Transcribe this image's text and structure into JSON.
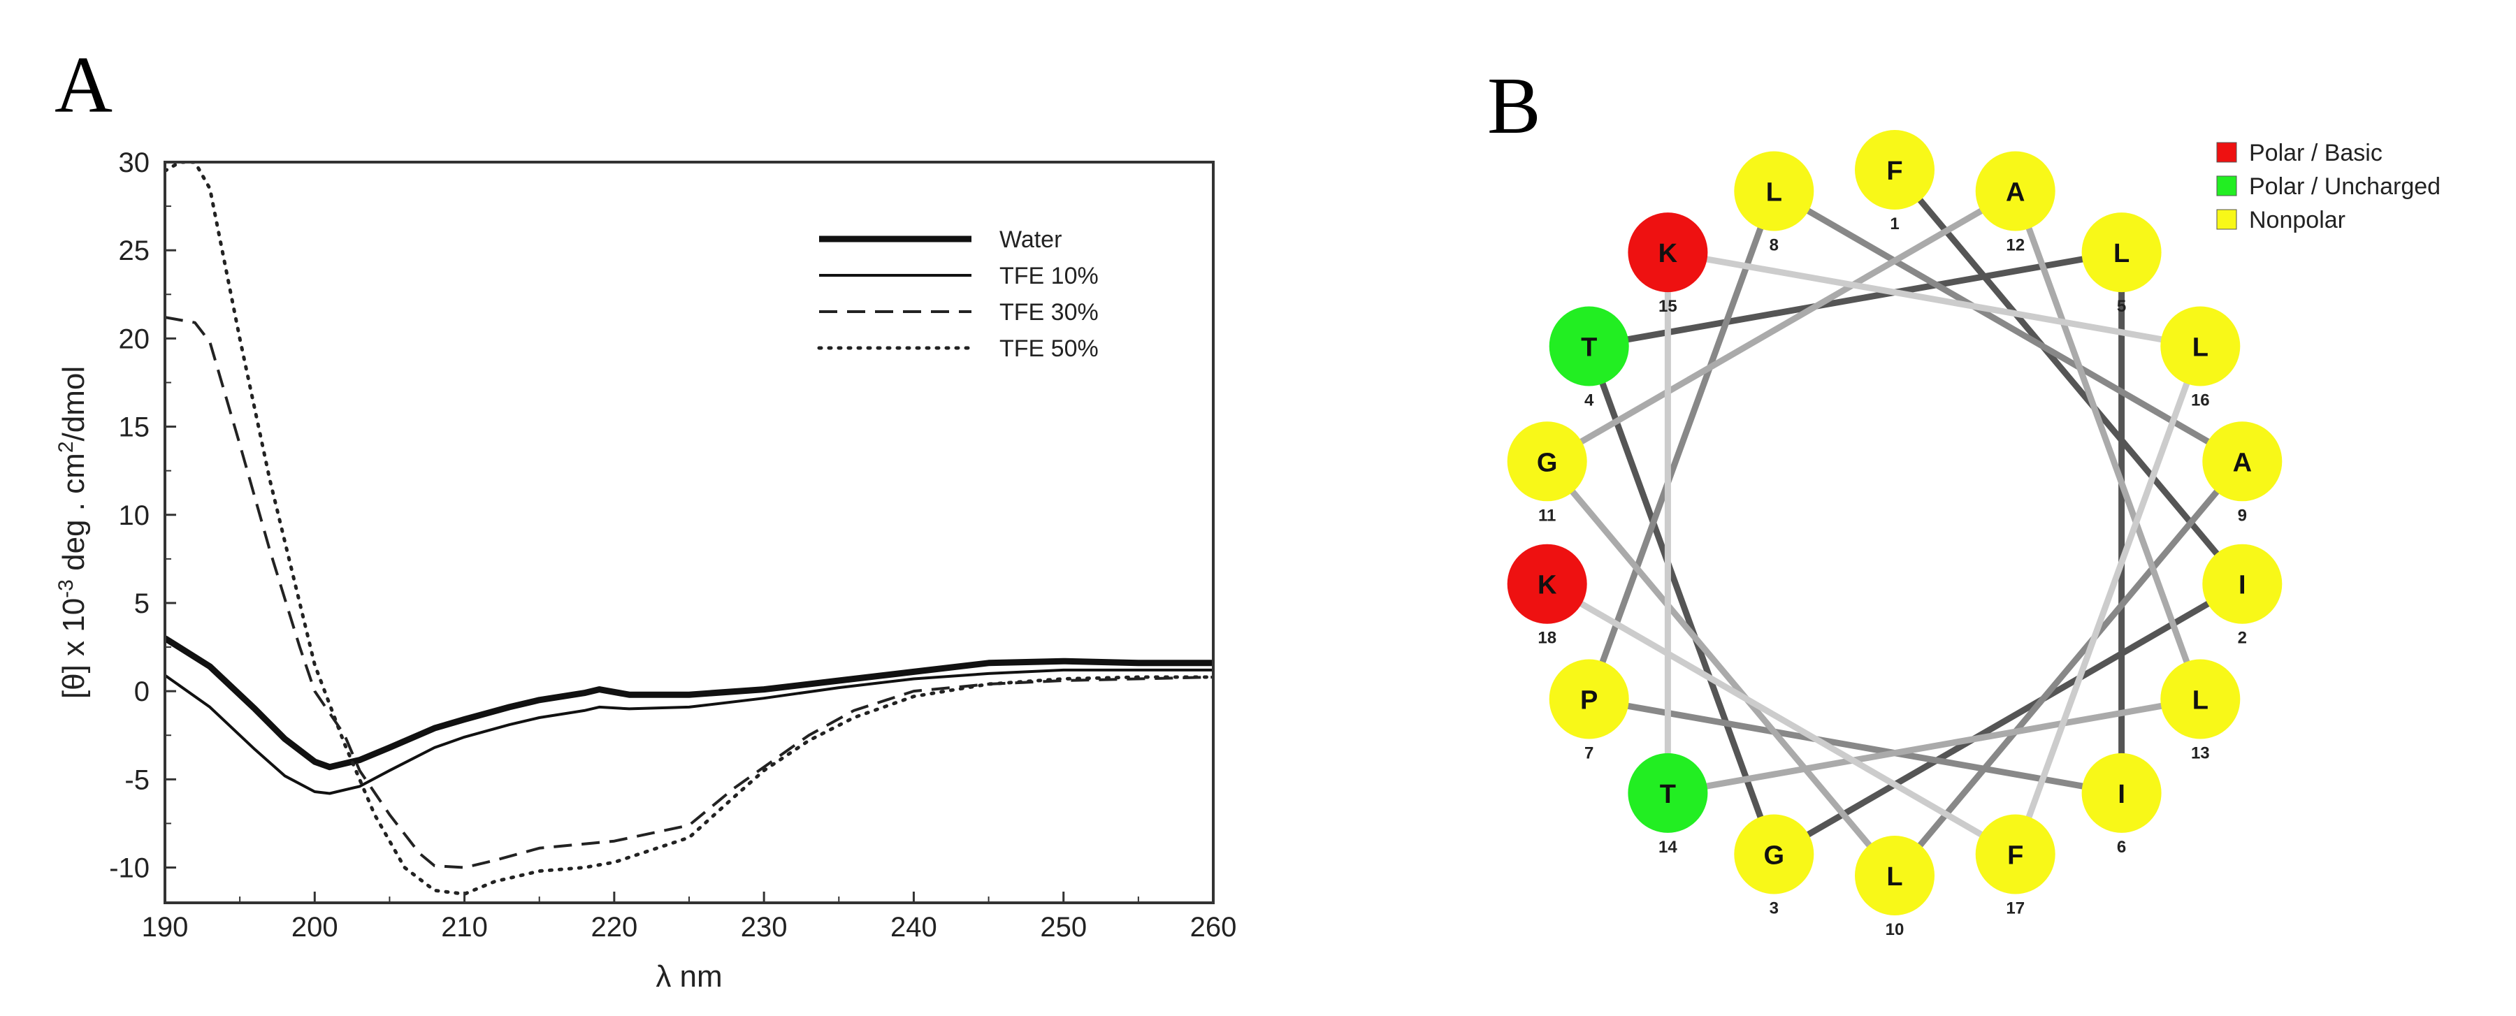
{
  "chart_data": [
    {
      "panel_label": "A",
      "type": "line",
      "title": "",
      "xlabel": "λ nm",
      "ylabel_parts": [
        "[θ] x 10",
        "-3",
        " deg . cm",
        "2",
        "/dmol"
      ],
      "xlim": [
        190,
        260
      ],
      "ylim": [
        -12,
        30
      ],
      "x_ticks": [
        190,
        200,
        210,
        220,
        230,
        240,
        250,
        260
      ],
      "y_ticks": [
        -10,
        -5,
        0,
        5,
        10,
        15,
        20,
        25,
        30
      ],
      "legend_position": "top-right",
      "series": [
        {
          "name": "Water",
          "style": "thick-solid",
          "points": [
            [
              190,
              3
            ],
            [
              193,
              1.4
            ],
            [
              196,
              -1
            ],
            [
              198,
              -2.7
            ],
            [
              200,
              -4
            ],
            [
              201,
              -4.3
            ],
            [
              203,
              -3.9
            ],
            [
              205,
              -3.2
            ],
            [
              208,
              -2.1
            ],
            [
              210,
              -1.6
            ],
            [
              213,
              -0.9
            ],
            [
              215,
              -0.5
            ],
            [
              218,
              -0.1
            ],
            [
              219,
              0.1
            ],
            [
              221,
              -0.2
            ],
            [
              225,
              -0.2
            ],
            [
              230,
              0.1
            ],
            [
              235,
              0.6
            ],
            [
              240,
              1.1
            ],
            [
              245,
              1.6
            ],
            [
              250,
              1.7
            ],
            [
              255,
              1.6
            ],
            [
              260,
              1.6
            ]
          ]
        },
        {
          "name": "TFE 10%",
          "style": "thin-solid",
          "points": [
            [
              190,
              0.9
            ],
            [
              193,
              -0.9
            ],
            [
              196,
              -3.3
            ],
            [
              198,
              -4.8
            ],
            [
              200,
              -5.7
            ],
            [
              201,
              -5.8
            ],
            [
              203,
              -5.4
            ],
            [
              205,
              -4.5
            ],
            [
              208,
              -3.2
            ],
            [
              210,
              -2.6
            ],
            [
              213,
              -1.9
            ],
            [
              215,
              -1.5
            ],
            [
              218,
              -1.1
            ],
            [
              219,
              -0.9
            ],
            [
              221,
              -1.0
            ],
            [
              225,
              -0.9
            ],
            [
              230,
              -0.4
            ],
            [
              235,
              0.2
            ],
            [
              240,
              0.7
            ],
            [
              245,
              1.0
            ],
            [
              250,
              1.2
            ],
            [
              255,
              1.2
            ],
            [
              260,
              1.2
            ]
          ]
        },
        {
          "name": "TFE 30%",
          "style": "dashed",
          "points": [
            [
              190,
              21.2
            ],
            [
              192,
              20.9
            ],
            [
              193,
              19.8
            ],
            [
              195,
              14
            ],
            [
              197,
              8
            ],
            [
              199,
              2.5
            ],
            [
              200,
              0
            ],
            [
              202,
              -2.5
            ],
            [
              203,
              -4.5
            ],
            [
              205,
              -7
            ],
            [
              207,
              -9.2
            ],
            [
              208,
              -9.9
            ],
            [
              210,
              -10
            ],
            [
              212,
              -9.6
            ],
            [
              215,
              -8.9
            ],
            [
              220,
              -8.5
            ],
            [
              225,
              -7.6
            ],
            [
              228,
              -5.5
            ],
            [
              230,
              -4.3
            ],
            [
              233,
              -2.5
            ],
            [
              236,
              -1.1
            ],
            [
              240,
              0
            ],
            [
              245,
              0.4
            ],
            [
              250,
              0.6
            ],
            [
              255,
              0.7
            ],
            [
              260,
              0.8
            ]
          ]
        },
        {
          "name": "TFE 50%",
          "style": "dotted",
          "points": [
            [
              190,
              29.5
            ],
            [
              191,
              30
            ],
            [
              192,
              30
            ],
            [
              193,
              28.5
            ],
            [
              195,
              20
            ],
            [
              197,
              12
            ],
            [
              199,
              5
            ],
            [
              200,
              1.5
            ],
            [
              202,
              -3
            ],
            [
              204,
              -7
            ],
            [
              206,
              -10
            ],
            [
              208,
              -11.3
            ],
            [
              210,
              -11.5
            ],
            [
              212,
              -10.8
            ],
            [
              215,
              -10.2
            ],
            [
              218,
              -10
            ],
            [
              220,
              -9.7
            ],
            [
              225,
              -8.3
            ],
            [
              228,
              -6
            ],
            [
              230,
              -4.5
            ],
            [
              233,
              -2.8
            ],
            [
              236,
              -1.5
            ],
            [
              240,
              -0.3
            ],
            [
              245,
              0.4
            ],
            [
              250,
              0.7
            ],
            [
              255,
              0.8
            ],
            [
              260,
              0.8
            ]
          ]
        }
      ]
    },
    {
      "panel_label": "B",
      "type": "helical-wheel",
      "legend_position": "top-right",
      "categories": [
        {
          "name": "Polar / Basic",
          "color": "#ee1111"
        },
        {
          "name": "Polar / Uncharged",
          "color": "#22ee22"
        },
        {
          "name": "Nonpolar",
          "color": "#f8f818"
        }
      ],
      "residues": [
        {
          "num": 1,
          "letter": "F",
          "class": 2
        },
        {
          "num": 2,
          "letter": "I",
          "class": 2
        },
        {
          "num": 3,
          "letter": "G",
          "class": 2
        },
        {
          "num": 4,
          "letter": "T",
          "class": 1
        },
        {
          "num": 5,
          "letter": "L",
          "class": 2
        },
        {
          "num": 6,
          "letter": "I",
          "class": 2
        },
        {
          "num": 7,
          "letter": "P",
          "class": 2
        },
        {
          "num": 8,
          "letter": "L",
          "class": 2
        },
        {
          "num": 9,
          "letter": "A",
          "class": 2
        },
        {
          "num": 10,
          "letter": "L",
          "class": 2
        },
        {
          "num": 11,
          "letter": "G",
          "class": 2
        },
        {
          "num": 12,
          "letter": "A",
          "class": 2
        },
        {
          "num": 13,
          "letter": "L",
          "class": 2
        },
        {
          "num": 14,
          "letter": "T",
          "class": 1
        },
        {
          "num": 15,
          "letter": "K",
          "class": 0
        },
        {
          "num": 16,
          "letter": "L",
          "class": 2
        },
        {
          "num": 17,
          "letter": "F",
          "class": 2
        },
        {
          "num": 18,
          "letter": "K",
          "class": 0
        }
      ],
      "bond_colors": [
        "#555555",
        "#888888",
        "#aaaaaa",
        "#cccccc"
      ]
    }
  ]
}
